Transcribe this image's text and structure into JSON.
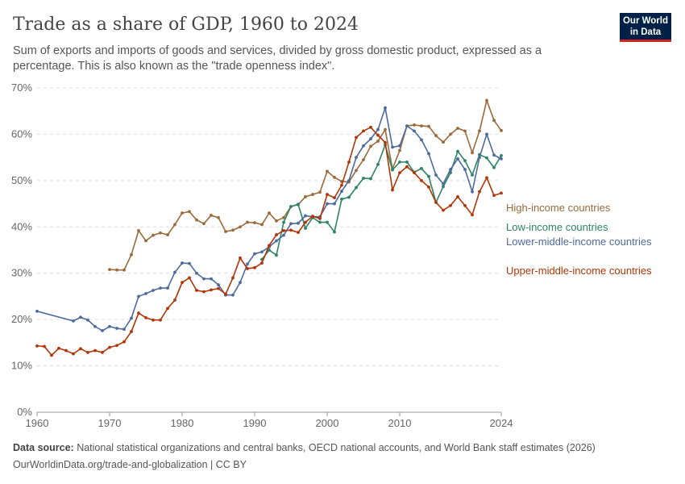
{
  "header": {
    "title": "Trade as a share of GDP, 1960 to 2024",
    "subtitle": "Sum of exports and imports of goods and services, divided by gross domestic product, expressed as a percentage. This is also known as the \"trade openness index\".",
    "logo_line1": "Our World",
    "logo_line2": "in Data"
  },
  "footer": {
    "source_label": "Data source:",
    "source_text": " National statistical organizations and central banks, OECD national accounts, and World Bank staff estimates (2026)",
    "url": "OurWorldinData.org/trade-and-globalization | CC BY"
  },
  "chart_data": {
    "type": "line",
    "title": "Trade as a share of GDP, 1960 to 2024",
    "xlim": [
      1960,
      2024
    ],
    "ylim": [
      0,
      70
    ],
    "yticks": [
      "0%",
      "10%",
      "20%",
      "30%",
      "40%",
      "50%",
      "60%",
      "70%"
    ],
    "xticks": [
      "1960",
      "1970",
      "1980",
      "1990",
      "2000",
      "2010",
      "2024"
    ],
    "grid": "horizontal dashed",
    "legend": "right, labels at line ends",
    "series": [
      {
        "name": "High-income countries",
        "color": "#9a6a3a",
        "start": 1970,
        "values": [
          30.8,
          30.7,
          30.7,
          34,
          39.2,
          37,
          38.2,
          38.7,
          38.3,
          40.5,
          43,
          43.3,
          41.5,
          40.7,
          42.5,
          42,
          39,
          39.3,
          40,
          41,
          40.9,
          40.5,
          43,
          41.3,
          42,
          44.4,
          44.8,
          46.5,
          47,
          47.5,
          52,
          50.7,
          49.8,
          49.7,
          52.2,
          54.5,
          57.4,
          58.5,
          61,
          52.5,
          56.5,
          61.8,
          62,
          61.8,
          61.7,
          59.7,
          58.3,
          60,
          61.3,
          60.7,
          56,
          60.7,
          67.3,
          63,
          60.8
        ]
      },
      {
        "name": "Low-income countries",
        "color": "#2c8465",
        "start": 1991,
        "values": [
          33,
          35,
          33.9,
          41,
          44.4,
          44.9,
          39.7,
          42,
          41,
          41,
          38.9,
          46,
          46.4,
          48.5,
          50.5,
          50.4,
          53.5,
          57.7,
          52.3,
          54,
          54,
          51.8,
          52.6,
          50.9,
          45.3,
          48.7,
          51.7,
          56.3,
          54.3,
          51.2,
          55.6,
          54.9,
          52.8,
          55.4
        ]
      },
      {
        "name": "Lower-middle-income countries",
        "color": "#4c6a9c",
        "points": [
          [
            1960,
            21.8
          ],
          [
            1965,
            19.7
          ],
          [
            1966,
            20.5
          ],
          [
            1967,
            19.9
          ],
          [
            1968,
            18.5
          ],
          [
            1969,
            17.6
          ],
          [
            1970,
            18.5
          ],
          [
            1971,
            18.1
          ],
          [
            1972,
            17.9
          ],
          [
            1973,
            20.3
          ],
          [
            1974,
            25
          ],
          [
            1975,
            25.6
          ],
          [
            1976,
            26.3
          ],
          [
            1977,
            26.8
          ],
          [
            1978,
            26.8
          ],
          [
            1979,
            30.2
          ],
          [
            1980,
            32.2
          ],
          [
            1981,
            32.1
          ],
          [
            1982,
            30
          ],
          [
            1983,
            28.8
          ],
          [
            1984,
            28.8
          ],
          [
            1985,
            27.5
          ],
          [
            1986,
            25.3
          ],
          [
            1987,
            25.3
          ],
          [
            1988,
            28
          ],
          [
            1989,
            32
          ],
          [
            1990,
            34.2
          ],
          [
            1991,
            34.6
          ],
          [
            1992,
            35.7
          ],
          [
            1993,
            37
          ],
          [
            1994,
            38.2
          ],
          [
            1995,
            40.7
          ],
          [
            1996,
            40.8
          ],
          [
            1997,
            42.4
          ],
          [
            1998,
            42.2
          ],
          [
            1999,
            42.2
          ],
          [
            2000,
            45
          ],
          [
            2001,
            45
          ],
          [
            2002,
            47.7
          ],
          [
            2003,
            50
          ],
          [
            2004,
            55
          ],
          [
            2005,
            57.5
          ],
          [
            2006,
            59
          ],
          [
            2007,
            61
          ],
          [
            2008,
            65.7
          ],
          [
            2009,
            57.2
          ],
          [
            2010,
            57.5
          ],
          [
            2011,
            61.8
          ],
          [
            2012,
            60.7
          ],
          [
            2013,
            58.8
          ],
          [
            2014,
            55.8
          ],
          [
            2015,
            51.2
          ],
          [
            2016,
            49.3
          ],
          [
            2017,
            52.4
          ],
          [
            2018,
            54.7
          ],
          [
            2019,
            52.4
          ],
          [
            2020,
            47.6
          ],
          [
            2021,
            55
          ],
          [
            2022,
            60
          ],
          [
            2023,
            55.5
          ],
          [
            2024,
            54.7
          ]
        ]
      },
      {
        "name": "Upper-middle-income countries",
        "color": "#b13507",
        "start": 1960,
        "values": [
          14.3,
          14.2,
          12.3,
          13.8,
          13.3,
          12.6,
          13.7,
          12.9,
          13.3,
          12.9,
          14,
          14.4,
          15.2,
          17.4,
          21.4,
          20.4,
          19.9,
          19.9,
          22.4,
          24.2,
          28,
          29,
          26.3,
          26,
          26.4,
          26.7,
          25.5,
          29,
          33.3,
          31,
          31.2,
          32.2,
          36,
          38.3,
          39.2,
          39.3,
          38.8,
          41,
          42.3,
          41.8,
          47,
          46.3,
          49,
          54,
          59.3,
          60.7,
          61.5,
          59.8,
          58.2,
          48,
          51.7,
          53,
          51.7,
          50,
          48.6,
          45.3,
          43.6,
          44.6,
          46.5,
          44.6,
          42.6,
          47.6,
          50.6,
          46.8,
          47.3
        ]
      }
    ]
  }
}
